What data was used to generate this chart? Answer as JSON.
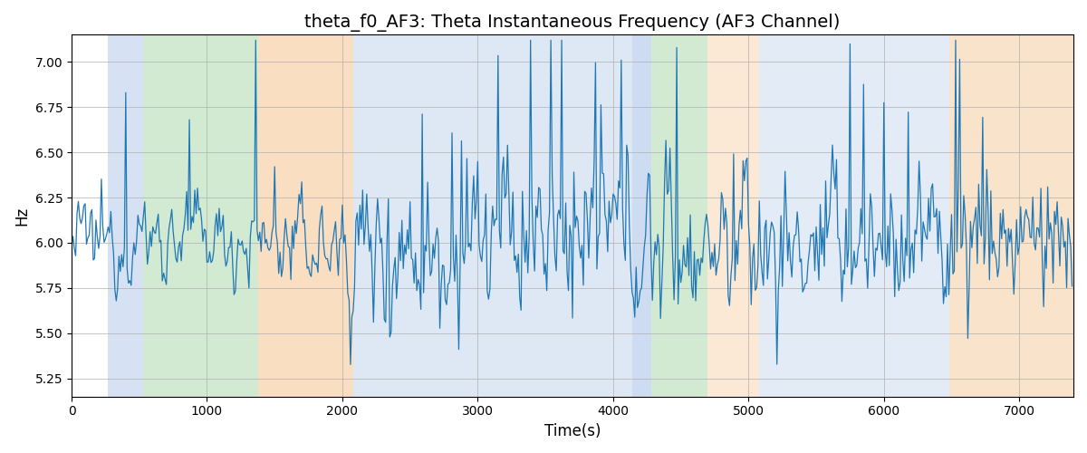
{
  "title": "theta_f0_AF3: Theta Instantaneous Frequency (AF3 Channel)",
  "xlabel": "Time(s)",
  "ylabel": "Hz",
  "xlim": [
    0,
    7400
  ],
  "ylim": [
    5.15,
    7.15
  ],
  "yticks": [
    5.25,
    5.5,
    5.75,
    6.0,
    6.25,
    6.5,
    6.75,
    7.0
  ],
  "line_color": "#1f77b4",
  "line_width": 0.9,
  "grid_color": "#b0b0b0",
  "title_fontsize": 14,
  "label_fontsize": 12,
  "bands": [
    {
      "xmin": 270,
      "xmax": 530,
      "color": "#aec6e8",
      "alpha": 0.5
    },
    {
      "xmin": 530,
      "xmax": 1380,
      "color": "#90c990",
      "alpha": 0.4
    },
    {
      "xmin": 1380,
      "xmax": 2080,
      "color": "#f5c899",
      "alpha": 0.6
    },
    {
      "xmin": 2080,
      "xmax": 4140,
      "color": "#aec6e8",
      "alpha": 0.4
    },
    {
      "xmin": 4140,
      "xmax": 4280,
      "color": "#aec6e8",
      "alpha": 0.6
    },
    {
      "xmin": 4280,
      "xmax": 4700,
      "color": "#90c990",
      "alpha": 0.4
    },
    {
      "xmin": 4700,
      "xmax": 5080,
      "color": "#f5c899",
      "alpha": 0.4
    },
    {
      "xmin": 5080,
      "xmax": 6480,
      "color": "#aec6e8",
      "alpha": 0.35
    },
    {
      "xmin": 6480,
      "xmax": 7400,
      "color": "#f5c899",
      "alpha": 0.5
    }
  ],
  "seed": 12345,
  "n_points": 740,
  "dt": 10,
  "base_freq": 6.0,
  "noise_std_early": 0.12,
  "noise_std_late": 0.22,
  "ar_coef": 0.55
}
